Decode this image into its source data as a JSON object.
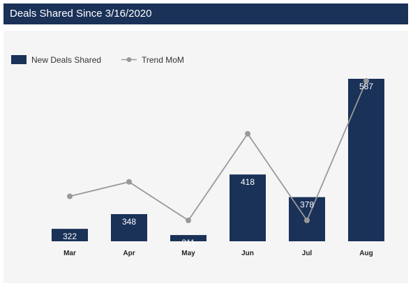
{
  "header": {
    "title": "Deals Shared Since 3/16/2020"
  },
  "colors": {
    "bar": "#1a3158",
    "trend": "#999999",
    "header_bg": "#1a3158",
    "panel_bg": "#f5f5f5"
  },
  "chart_data": {
    "type": "bar",
    "categories": [
      "Mar",
      "Apr",
      "May",
      "Jun",
      "Jul",
      "Aug"
    ],
    "series": [
      {
        "name": "New Deals Shared",
        "type": "bar",
        "values": [
          322,
          348,
          311,
          418,
          378,
          587
        ]
      },
      {
        "name": "Trend MoM",
        "type": "line",
        "values": [
          -0.1,
          0.05,
          -0.35,
          0.55,
          -0.35,
          1.1
        ]
      }
    ],
    "data_labels": [
      "322",
      "348",
      "311",
      "418",
      "378",
      "587"
    ],
    "legend": "top-left",
    "grid": false
  }
}
